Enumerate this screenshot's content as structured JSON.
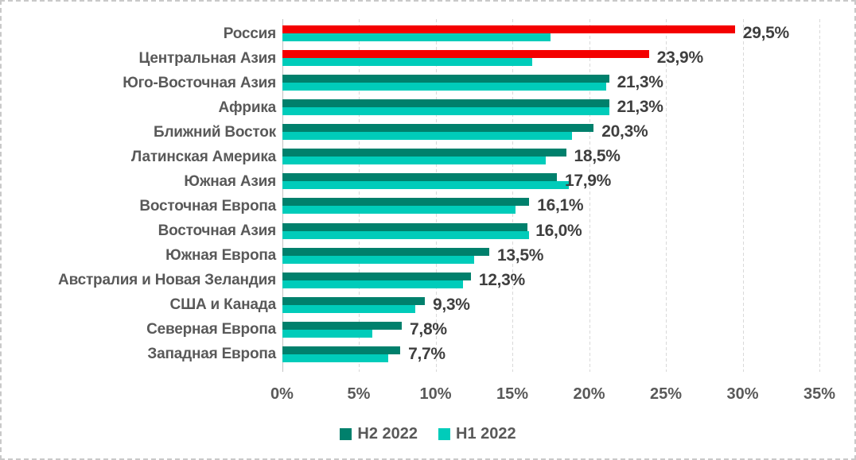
{
  "page": {
    "background": "#FFFFFF",
    "border_color": "#C9C9C9"
  },
  "chart_data": {
    "type": "bar",
    "orientation": "horizontal",
    "title": "",
    "xlabel": "",
    "ylabel": "",
    "categories": [
      "Россия",
      "Центральная Азия",
      "Юго-Восточная Азия",
      "Африка",
      "Ближний Восток",
      "Латинская Америка",
      "Южная Азия",
      "Восточная Европа",
      "Восточная Азия",
      "Южная Европа",
      "Австралия и Новая Зеландия",
      "США и Канада",
      "Северная Европа",
      "Западная Европа"
    ],
    "series": [
      {
        "name": "H2 2022",
        "color": "#00806C",
        "values": [
          29.5,
          23.9,
          21.3,
          21.3,
          20.3,
          18.5,
          17.9,
          16.1,
          16.0,
          13.5,
          12.3,
          9.3,
          7.8,
          7.7
        ]
      },
      {
        "name": "H1 2022",
        "color": "#00CCBA",
        "values": [
          17.5,
          16.3,
          21.1,
          21.3,
          18.9,
          17.2,
          18.7,
          15.2,
          16.1,
          12.5,
          11.8,
          8.7,
          5.9,
          6.9
        ]
      }
    ],
    "highlight": {
      "series": "H2 2022",
      "indices": [
        0,
        1
      ],
      "color": "#F40000"
    },
    "value_labels": [
      "29,5%",
      "23,9%",
      "21,3%",
      "21,3%",
      "20,3%",
      "18,5%",
      "17,9%",
      "16,1%",
      "16,0%",
      "13,5%",
      "12,3%",
      "9,3%",
      "7,8%",
      "7,7%"
    ],
    "x_ticks": [
      "0%",
      "5%",
      "10%",
      "15%",
      "20%",
      "25%",
      "30%",
      "35%"
    ],
    "x_tick_values": [
      0,
      5,
      10,
      15,
      20,
      25,
      30,
      35
    ],
    "xlim": [
      0,
      35
    ],
    "grid": "vertical-dashed",
    "gridline_color": "#D9D9D9",
    "axis_line_color": "#C3C3C3",
    "legend_position": "bottom-center",
    "legend_items": [
      "H2 2022",
      "H1 2022"
    ],
    "text_colors": {
      "category": "#595959",
      "value": "#3F3F3F",
      "axis": "#595959",
      "legend": "#595959"
    }
  }
}
